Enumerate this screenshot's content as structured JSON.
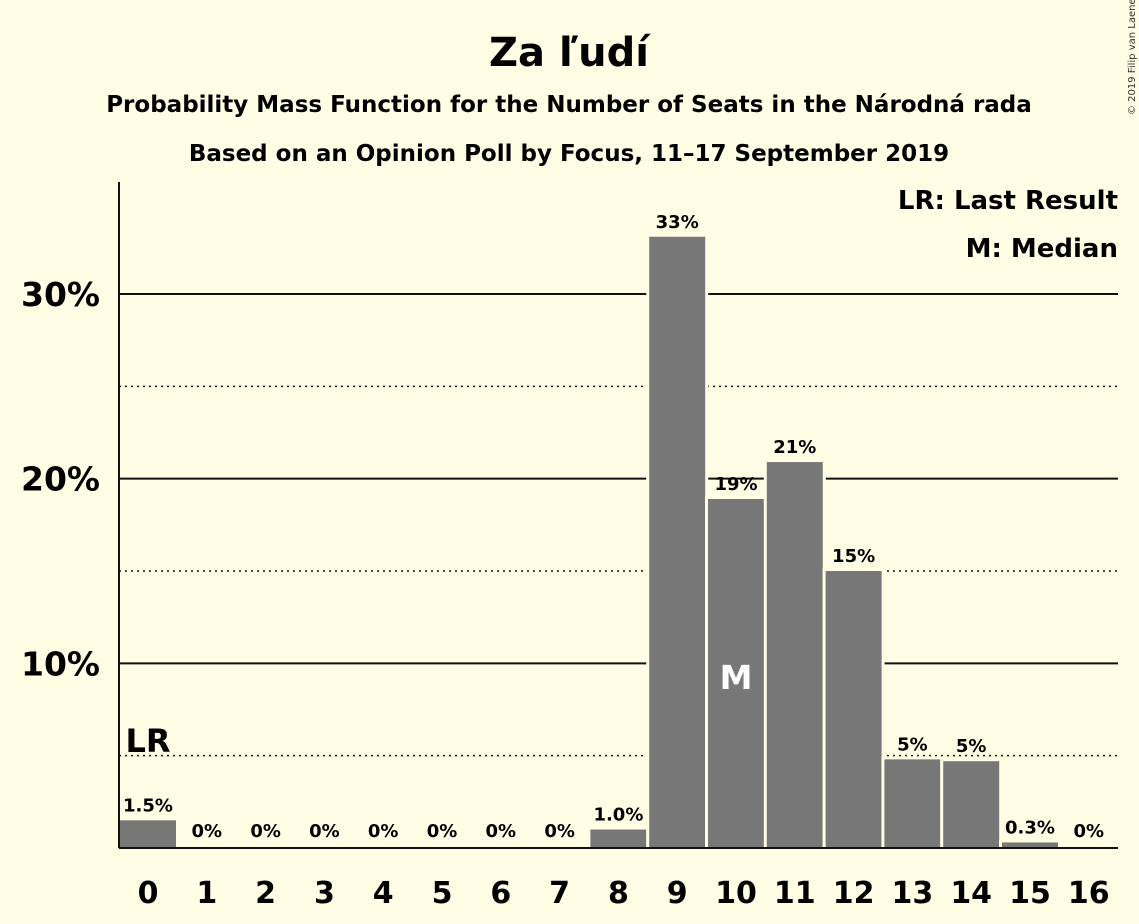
{
  "title": "Za ľudí",
  "subtitle1": "Probability Mass Function for the Number of Seats in the Národná rada",
  "subtitle2": "Based on an Opinion Poll by Focus, 11–17 September 2019",
  "copyright": "© 2019 Filip van Laenen",
  "legend": {
    "last_result": "LR: Last Result",
    "median": "M: Median"
  },
  "colors": {
    "background": "#fffde4",
    "bar": "#777777",
    "text": "#111111"
  },
  "chart_data": {
    "type": "bar",
    "categories": [
      "0",
      "1",
      "2",
      "3",
      "4",
      "5",
      "6",
      "7",
      "8",
      "9",
      "10",
      "11",
      "12",
      "13",
      "14",
      "15",
      "16"
    ],
    "values": [
      1.5,
      0,
      0,
      0,
      0,
      0,
      0,
      0,
      1.0,
      33,
      19,
      21,
      15,
      5,
      5,
      0.3,
      0
    ],
    "data_labels": [
      "1.5%",
      "0%",
      "0%",
      "0%",
      "0%",
      "0%",
      "0%",
      "0%",
      "1.0%",
      "33%",
      "19%",
      "21%",
      "15%",
      "5%",
      "5%",
      "0.3%",
      "0%"
    ],
    "bar_values_precise": [
      1.5,
      0,
      0,
      0,
      0,
      0,
      0,
      0,
      1.0,
      33.1,
      18.9,
      20.9,
      15.0,
      4.8,
      4.7,
      0.3,
      0
    ],
    "ylim": [
      0,
      36
    ],
    "yticks": [
      10,
      20,
      30
    ],
    "ytick_labels": [
      "10%",
      "20%",
      "30%"
    ],
    "minor_gridlines": [
      5,
      15,
      25
    ],
    "last_result_seats": "0",
    "last_result_marker": "LR",
    "median_seats": "10",
    "median_marker": "M",
    "xlabel": "",
    "ylabel": ""
  }
}
